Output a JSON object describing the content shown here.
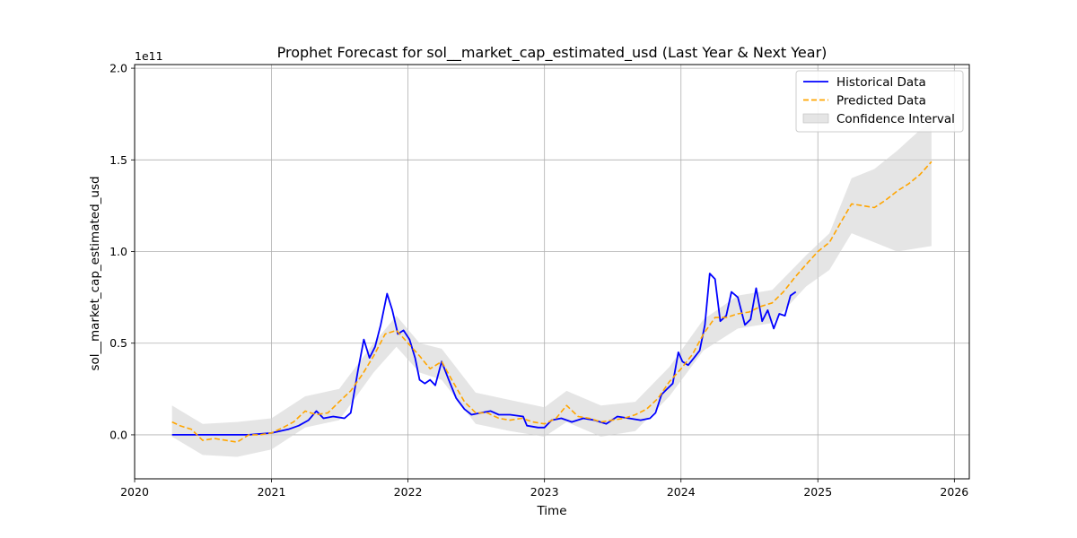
{
  "chart_data": {
    "type": "line",
    "title": "Prophet Forecast for sol__market_cap_estimated_usd (Last Year & Next Year)",
    "xlabel": "Time",
    "ylabel": "sol__market_cap_estimated_usd",
    "y_offset_label": "1e11",
    "y_multiplier": 100000000000.0,
    "xlim": [
      "2020-01-01",
      "2026-02-10"
    ],
    "ylim": [
      -0.24,
      2.02
    ],
    "x_ticks": [
      "2020",
      "2021",
      "2022",
      "2023",
      "2024",
      "2025",
      "2026"
    ],
    "y_ticks": [
      "0.0",
      "0.5",
      "1.0",
      "1.5",
      "2.0"
    ],
    "grid": true,
    "legend_position": "upper right",
    "colors": {
      "historical": "#0000ff",
      "predicted": "#ffa500",
      "interval": "#d3d3d3",
      "grid": "#b0b0b0"
    },
    "series": [
      {
        "name": "Historical Data",
        "style": "solid",
        "points": [
          [
            "2020-04-10",
            0.0
          ],
          [
            "2020-08-01",
            0.0
          ],
          [
            "2020-11-01",
            0.0
          ],
          [
            "2021-01-01",
            0.01
          ],
          [
            "2021-02-15",
            0.03
          ],
          [
            "2021-03-15",
            0.05
          ],
          [
            "2021-04-10",
            0.08
          ],
          [
            "2021-05-01",
            0.13
          ],
          [
            "2021-05-20",
            0.09
          ],
          [
            "2021-06-15",
            0.1
          ],
          [
            "2021-07-15",
            0.09
          ],
          [
            "2021-08-01",
            0.12
          ],
          [
            "2021-08-20",
            0.35
          ],
          [
            "2021-09-05",
            0.52
          ],
          [
            "2021-09-20",
            0.42
          ],
          [
            "2021-10-05",
            0.48
          ],
          [
            "2021-10-20",
            0.6
          ],
          [
            "2021-11-06",
            0.77
          ],
          [
            "2021-11-20",
            0.68
          ],
          [
            "2021-12-05",
            0.55
          ],
          [
            "2021-12-20",
            0.57
          ],
          [
            "2022-01-05",
            0.52
          ],
          [
            "2022-01-20",
            0.42
          ],
          [
            "2022-02-01",
            0.3
          ],
          [
            "2022-02-15",
            0.28
          ],
          [
            "2022-03-01",
            0.3
          ],
          [
            "2022-03-15",
            0.27
          ],
          [
            "2022-04-01",
            0.4
          ],
          [
            "2022-04-20",
            0.3
          ],
          [
            "2022-05-10",
            0.2
          ],
          [
            "2022-06-01",
            0.14
          ],
          [
            "2022-06-20",
            0.11
          ],
          [
            "2022-07-15",
            0.12
          ],
          [
            "2022-08-10",
            0.13
          ],
          [
            "2022-09-01",
            0.11
          ],
          [
            "2022-10-01",
            0.11
          ],
          [
            "2022-11-05",
            0.1
          ],
          [
            "2022-11-15",
            0.05
          ],
          [
            "2022-12-15",
            0.04
          ],
          [
            "2023-01-01",
            0.04
          ],
          [
            "2023-01-20",
            0.08
          ],
          [
            "2023-02-15",
            0.09
          ],
          [
            "2023-03-15",
            0.07
          ],
          [
            "2023-04-15",
            0.09
          ],
          [
            "2023-05-15",
            0.08
          ],
          [
            "2023-06-15",
            0.06
          ],
          [
            "2023-07-15",
            0.1
          ],
          [
            "2023-08-15",
            0.09
          ],
          [
            "2023-09-15",
            0.08
          ],
          [
            "2023-10-10",
            0.09
          ],
          [
            "2023-10-25",
            0.12
          ],
          [
            "2023-11-10",
            0.22
          ],
          [
            "2023-11-25",
            0.25
          ],
          [
            "2023-12-10",
            0.28
          ],
          [
            "2023-12-25",
            0.45
          ],
          [
            "2024-01-05",
            0.4
          ],
          [
            "2024-01-20",
            0.38
          ],
          [
            "2024-02-05",
            0.42
          ],
          [
            "2024-02-20",
            0.46
          ],
          [
            "2024-03-05",
            0.6
          ],
          [
            "2024-03-18",
            0.88
          ],
          [
            "2024-04-01",
            0.85
          ],
          [
            "2024-04-15",
            0.62
          ],
          [
            "2024-05-01",
            0.65
          ],
          [
            "2024-05-15",
            0.78
          ],
          [
            "2024-06-01",
            0.75
          ],
          [
            "2024-06-20",
            0.6
          ],
          [
            "2024-07-05",
            0.63
          ],
          [
            "2024-07-20",
            0.8
          ],
          [
            "2024-08-05",
            0.62
          ],
          [
            "2024-08-20",
            0.68
          ],
          [
            "2024-09-05",
            0.58
          ],
          [
            "2024-09-20",
            0.66
          ],
          [
            "2024-10-05",
            0.65
          ],
          [
            "2024-10-20",
            0.76
          ],
          [
            "2024-11-03",
            0.78
          ]
        ]
      },
      {
        "name": "Predicted Data",
        "style": "dashed",
        "points": [
          [
            "2020-04-10",
            0.07
          ],
          [
            "2020-05-01",
            0.05
          ],
          [
            "2020-06-01",
            0.03
          ],
          [
            "2020-07-01",
            -0.03
          ],
          [
            "2020-08-01",
            -0.02
          ],
          [
            "2020-09-01",
            -0.03
          ],
          [
            "2020-10-01",
            -0.04
          ],
          [
            "2020-11-01",
            0.0
          ],
          [
            "2020-12-01",
            0.0
          ],
          [
            "2021-01-01",
            0.01
          ],
          [
            "2021-02-01",
            0.04
          ],
          [
            "2021-03-01",
            0.07
          ],
          [
            "2021-04-01",
            0.13
          ],
          [
            "2021-05-01",
            0.11
          ],
          [
            "2021-06-01",
            0.12
          ],
          [
            "2021-07-01",
            0.18
          ],
          [
            "2021-08-01",
            0.24
          ],
          [
            "2021-09-01",
            0.33
          ],
          [
            "2021-10-01",
            0.43
          ],
          [
            "2021-11-01",
            0.55
          ],
          [
            "2021-12-01",
            0.57
          ],
          [
            "2022-01-01",
            0.5
          ],
          [
            "2022-02-01",
            0.43
          ],
          [
            "2022-03-01",
            0.36
          ],
          [
            "2022-04-01",
            0.4
          ],
          [
            "2022-05-01",
            0.29
          ],
          [
            "2022-06-01",
            0.18
          ],
          [
            "2022-07-01",
            0.12
          ],
          [
            "2022-08-01",
            0.12
          ],
          [
            "2022-09-01",
            0.09
          ],
          [
            "2022-10-01",
            0.08
          ],
          [
            "2022-11-01",
            0.09
          ],
          [
            "2022-12-01",
            0.07
          ],
          [
            "2023-01-01",
            0.06
          ],
          [
            "2023-02-01",
            0.09
          ],
          [
            "2023-03-01",
            0.16
          ],
          [
            "2023-04-01",
            0.1
          ],
          [
            "2023-05-01",
            0.09
          ],
          [
            "2023-06-01",
            0.07
          ],
          [
            "2023-07-01",
            0.08
          ],
          [
            "2023-08-01",
            0.09
          ],
          [
            "2023-09-01",
            0.11
          ],
          [
            "2023-10-01",
            0.14
          ],
          [
            "2023-11-01",
            0.2
          ],
          [
            "2023-12-01",
            0.29
          ],
          [
            "2024-01-01",
            0.36
          ],
          [
            "2024-02-01",
            0.44
          ],
          [
            "2024-03-01",
            0.55
          ],
          [
            "2024-04-01",
            0.64
          ],
          [
            "2024-05-01",
            0.64
          ],
          [
            "2024-06-01",
            0.66
          ],
          [
            "2024-07-01",
            0.67
          ],
          [
            "2024-08-01",
            0.7
          ],
          [
            "2024-09-01",
            0.72
          ],
          [
            "2024-10-01",
            0.78
          ],
          [
            "2024-11-01",
            0.86
          ],
          [
            "2024-12-01",
            0.93
          ],
          [
            "2025-01-01",
            1.0
          ],
          [
            "2025-02-01",
            1.05
          ],
          [
            "2025-03-01",
            1.15
          ],
          [
            "2025-04-01",
            1.26
          ],
          [
            "2025-05-01",
            1.25
          ],
          [
            "2025-06-01",
            1.24
          ],
          [
            "2025-07-01",
            1.28
          ],
          [
            "2025-08-01",
            1.33
          ],
          [
            "2025-09-01",
            1.37
          ],
          [
            "2025-10-01",
            1.42
          ],
          [
            "2025-11-01",
            1.49
          ]
        ]
      },
      {
        "name": "Confidence Interval",
        "style": "band",
        "x": [
          "2020-04-10",
          "2020-07-01",
          "2020-10-01",
          "2021-01-01",
          "2021-04-01",
          "2021-07-01",
          "2021-10-01",
          "2021-12-01",
          "2022-02-01",
          "2022-04-01",
          "2022-07-01",
          "2022-10-01",
          "2023-01-01",
          "2023-03-01",
          "2023-06-01",
          "2023-09-01",
          "2023-12-01",
          "2024-03-01",
          "2024-06-01",
          "2024-09-01",
          "2024-12-01",
          "2025-02-01",
          "2025-04-01",
          "2025-06-01",
          "2025-08-01",
          "2025-11-01"
        ],
        "upper": [
          0.16,
          0.06,
          0.07,
          0.09,
          0.21,
          0.25,
          0.5,
          0.65,
          0.5,
          0.47,
          0.23,
          0.19,
          0.15,
          0.24,
          0.16,
          0.18,
          0.37,
          0.63,
          0.76,
          0.79,
          0.98,
          1.1,
          1.4,
          1.45,
          1.55,
          1.72
        ],
        "lower": [
          -0.01,
          -0.11,
          -0.12,
          -0.08,
          0.04,
          0.08,
          0.34,
          0.48,
          0.34,
          0.3,
          0.06,
          0.02,
          -0.01,
          0.07,
          -0.01,
          0.02,
          0.21,
          0.46,
          0.58,
          0.61,
          0.81,
          0.9,
          1.1,
          1.05,
          1.0,
          1.03
        ]
      }
    ]
  }
}
